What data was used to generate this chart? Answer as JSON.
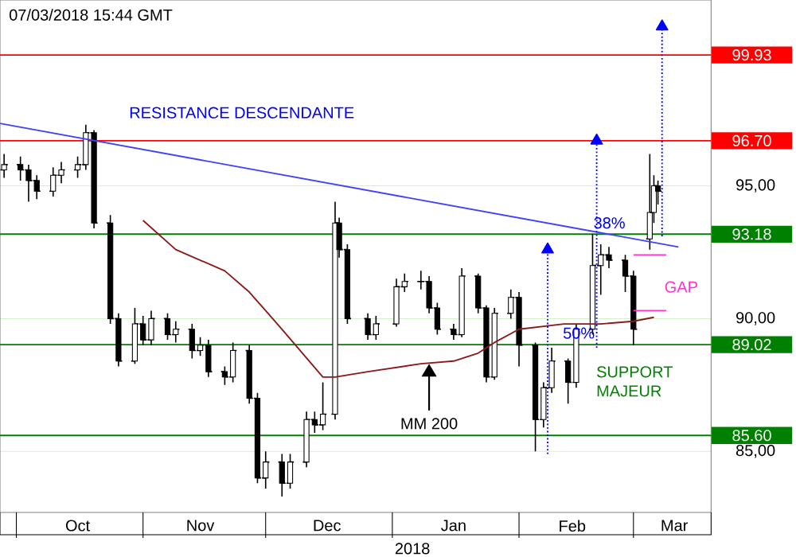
{
  "chart_data": {
    "type": "candlestick",
    "title": "07/03/2018  15:44 GMT",
    "xlim": [
      "2017-09-27",
      "2018-03-20"
    ],
    "ylim": [
      82.7,
      102
    ],
    "xticks": [
      {
        "value": "2017-10-01",
        "label": null
      },
      {
        "value": "2017-10-16",
        "label": "Oct"
      },
      {
        "value": "2017-11-01",
        "label": null
      },
      {
        "value": "2017-11-15",
        "label": "Nov"
      },
      {
        "value": "2017-12-01",
        "label": null
      },
      {
        "value": "2017-12-16",
        "label": "Dec"
      },
      {
        "value": "2018-01-01",
        "label": null
      },
      {
        "value": "2018-01-16",
        "label": "Jan"
      },
      {
        "value": "2018-02-01",
        "label": null
      },
      {
        "value": "2018-02-14",
        "label": "Feb"
      },
      {
        "value": "2018-03-01",
        "label": null
      },
      {
        "value": "2018-03-11",
        "label": "Mar"
      }
    ],
    "yticks": [
      {
        "value": 85,
        "label": "85,00"
      },
      {
        "value": 90,
        "label": "90,00"
      },
      {
        "value": 95,
        "label": "95,00"
      }
    ],
    "grid": "y",
    "series": [
      {
        "color": "#000000",
        "x": [
          "2017-09-28",
          "2017-10-02",
          "2017-10-04",
          "2017-10-06",
          "2017-10-10",
          "2017-10-12",
          "2017-10-16",
          "2017-10-18",
          "2017-10-20",
          "2017-10-24",
          "2017-10-26",
          "2017-10-30",
          "2017-11-01",
          "2017-11-03",
          "2017-11-07",
          "2017-11-09",
          "2017-11-13",
          "2017-11-15",
          "2017-11-17",
          "2017-11-21",
          "2017-11-23",
          "2017-11-27",
          "2017-11-29",
          "2017-12-01",
          "2017-12-05",
          "2017-12-07",
          "2017-12-11",
          "2017-12-13",
          "2017-12-15",
          "2017-12-18",
          "2017-12-19",
          "2017-12-21",
          "2017-12-26",
          "2017-12-28",
          "2018-01-02",
          "2018-01-04",
          "2018-01-08",
          "2018-01-10",
          "2018-01-12",
          "2018-01-16",
          "2018-01-18",
          "2018-01-22",
          "2018-01-24",
          "2018-01-26",
          "2018-01-30",
          "2018-02-01",
          "2018-02-05",
          "2018-02-07",
          "2018-02-09",
          "2018-02-13",
          "2018-02-15",
          "2018-02-19",
          "2018-02-21",
          "2018-02-23",
          "2018-02-27",
          "2018-03-01",
          "2018-03-05",
          "2018-03-06",
          "2018-03-07"
        ],
        "ohlc": [
          [
            95.6,
            96.2,
            95.3,
            95.8
          ],
          [
            95.8,
            96.1,
            95.2,
            95.6
          ],
          [
            95.6,
            95.8,
            94.4,
            95.2
          ],
          [
            95.2,
            95.4,
            94.5,
            94.8
          ],
          [
            94.8,
            95.7,
            94.6,
            95.4
          ],
          [
            95.4,
            95.9,
            95.1,
            95.6
          ],
          [
            95.6,
            96.1,
            95.3,
            95.8
          ],
          [
            95.8,
            97.3,
            95.6,
            97.0
          ],
          [
            97.0,
            97.1,
            93.4,
            93.6
          ],
          [
            93.6,
            93.9,
            89.8,
            90.0
          ],
          [
            90.0,
            90.2,
            88.2,
            88.4
          ],
          [
            88.4,
            90.4,
            88.3,
            89.8
          ],
          [
            89.8,
            90.1,
            89.0,
            89.2
          ],
          [
            89.2,
            90.3,
            89.0,
            90.0
          ],
          [
            90.0,
            90.2,
            89.2,
            89.4
          ],
          [
            89.4,
            89.9,
            89.1,
            89.6
          ],
          [
            89.6,
            89.8,
            88.5,
            88.8
          ],
          [
            88.8,
            89.3,
            88.6,
            89.0
          ],
          [
            89.0,
            89.2,
            87.8,
            88.0
          ],
          [
            88.0,
            88.2,
            87.5,
            87.8
          ],
          [
            87.8,
            89.1,
            87.6,
            88.8
          ],
          [
            88.8,
            89.0,
            86.8,
            87.0
          ],
          [
            87.0,
            87.2,
            83.8,
            84.0
          ],
          [
            84.0,
            85.0,
            83.6,
            84.6
          ],
          [
            84.6,
            84.9,
            83.3,
            83.8
          ],
          [
            83.8,
            84.9,
            83.6,
            84.6
          ],
          [
            84.6,
            86.5,
            84.4,
            86.2
          ],
          [
            86.2,
            86.5,
            85.7,
            86.0
          ],
          [
            86.0,
            87.6,
            85.8,
            86.4
          ],
          [
            86.4,
            94.4,
            86.2,
            93.6
          ],
          [
            93.6,
            93.8,
            92.3,
            92.6
          ],
          [
            92.6,
            92.8,
            89.8,
            90.0
          ],
          [
            90.0,
            90.2,
            89.2,
            89.4
          ],
          [
            89.4,
            90.1,
            89.2,
            89.8
          ],
          [
            89.8,
            91.5,
            89.7,
            91.2
          ],
          [
            91.2,
            91.7,
            91.0,
            91.4
          ],
          [
            91.4,
            91.8,
            91.1,
            91.4
          ],
          [
            91.4,
            91.6,
            90.2,
            90.4
          ],
          [
            90.4,
            90.6,
            89.4,
            89.6
          ],
          [
            89.6,
            89.8,
            89.2,
            89.4
          ],
          [
            89.4,
            91.9,
            89.3,
            91.6
          ],
          [
            91.6,
            91.7,
            90.2,
            90.4
          ],
          [
            90.4,
            90.5,
            87.6,
            87.8
          ],
          [
            87.8,
            90.4,
            87.7,
            90.2
          ],
          [
            90.2,
            91.1,
            90.0,
            90.8
          ],
          [
            90.8,
            91.0,
            88.2,
            89.0
          ],
          [
            89.0,
            89.1,
            85.0,
            86.2
          ],
          [
            86.2,
            87.6,
            85.9,
            87.4
          ],
          [
            87.4,
            88.9,
            87.2,
            88.4
          ],
          [
            88.4,
            88.5,
            86.8,
            87.6
          ],
          [
            87.6,
            89.8,
            87.4,
            89.6
          ],
          [
            89.6,
            93.2,
            89.4,
            92.0
          ],
          [
            92.0,
            92.8,
            90.9,
            92.4
          ],
          [
            92.4,
            92.7,
            91.9,
            92.2
          ],
          [
            92.2,
            92.4,
            91.0,
            91.6
          ],
          [
            91.6,
            91.8,
            89.0,
            89.6
          ],
          [
            93.0,
            96.2,
            92.6,
            94.0
          ],
          [
            94.0,
            95.4,
            93.6,
            95.0
          ],
          [
            95.0,
            95.2,
            94.3,
            94.8
          ]
        ]
      },
      {
        "type": "line",
        "color": "#8b1a1a",
        "x": [
          "2017-11-01",
          "2017-11-09",
          "2017-11-21",
          "2017-11-27",
          "2017-12-01",
          "2017-12-05",
          "2017-12-15",
          "2017-12-18",
          "2017-12-26",
          "2018-01-08",
          "2018-01-16",
          "2018-01-22",
          "2018-01-26",
          "2018-02-01",
          "2018-02-12",
          "2018-02-21",
          "2018-03-01",
          "2018-03-06"
        ],
        "values": [
          93.7,
          92.6,
          91.8,
          91.0,
          90.3,
          89.6,
          87.8,
          87.8,
          88.0,
          88.3,
          88.4,
          88.7,
          89.1,
          89.6,
          89.8,
          89.8,
          89.9,
          90.05
        ]
      },
      {
        "type": "line",
        "color": "#4040ff",
        "x": [
          "2017-09-27",
          "2018-03-12"
        ],
        "values": [
          97.35,
          92.7
        ]
      },
      {
        "type": "line",
        "color": "#0000ff",
        "line_style": "dotted",
        "marker": "triangle",
        "x": [
          "2018-02-08",
          "2018-02-08"
        ],
        "values": [
          84.9,
          92.6
        ]
      },
      {
        "type": "line",
        "color": "#0000ff",
        "line_style": "dotted",
        "marker": "triangle",
        "x": [
          "2018-02-20",
          "2018-02-20"
        ],
        "values": [
          88.9,
          96.7
        ]
      },
      {
        "type": "line",
        "color": "#0000ff",
        "line_style": "dotted",
        "marker": "triangle",
        "x": [
          "2018-03-08",
          "2018-03-08"
        ],
        "values": [
          93.1,
          101.0
        ]
      },
      {
        "type": "line",
        "color": "#ff33cc",
        "x": [
          "2018-03-01",
          "2018-03-09"
        ],
        "values": [
          92.4,
          92.4
        ]
      },
      {
        "type": "line",
        "color": "#ff33cc",
        "x": [
          "2018-03-01",
          "2018-03-09"
        ],
        "values": [
          90.3,
          90.3
        ]
      }
    ],
    "ref_lines": [
      {
        "axis": "y",
        "value": 99.93,
        "label": "99.93",
        "color": "#ff0000"
      },
      {
        "axis": "y",
        "value": 96.7,
        "label": "96.70",
        "color": "#ff0000"
      },
      {
        "axis": "y",
        "value": 93.18,
        "label": "93.18",
        "color": "#008000"
      },
      {
        "axis": "y",
        "value": 89.02,
        "label": "89.02",
        "color": "#008000"
      },
      {
        "axis": "y",
        "value": 85.6,
        "label": "85.60",
        "color": "#008000"
      }
    ],
    "annotations": [
      "RESISTANCE DESCENDANTE",
      {
        "text": "MM 200",
        "x": "2018-01-10",
        "y": 88.3
      },
      "SUPPORT MAJEUR",
      "50%",
      "38%",
      "GAP",
      "2018"
    ]
  }
}
